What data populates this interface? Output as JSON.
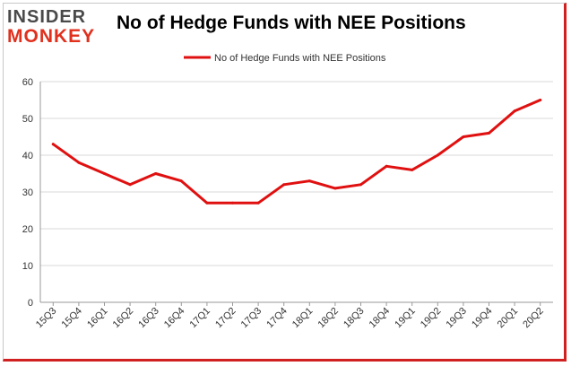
{
  "brand": {
    "logo_top": "INSIDER",
    "logo_bottom": "MONKEY"
  },
  "colors": {
    "series": "#e01010",
    "grid": "#d9d9d9",
    "axis": "#999999",
    "logo_red": "#e0301e",
    "logo_gray": "#4a4a4a"
  },
  "chart_data": {
    "type": "line",
    "title": "No of Hedge Funds with NEE Positions",
    "xlabel": "",
    "ylabel": "",
    "categories": [
      "15Q3",
      "15Q4",
      "16Q1",
      "16Q2",
      "16Q3",
      "16Q4",
      "17Q1",
      "17Q2",
      "17Q3",
      "17Q4",
      "18Q1",
      "18Q2",
      "18Q3",
      "18Q4",
      "19Q1",
      "19Q2",
      "19Q3",
      "19Q4",
      "20Q1",
      "20Q2"
    ],
    "series": [
      {
        "name": "No of Hedge Funds with NEE Positions",
        "values": [
          43,
          38,
          35,
          32,
          35,
          33,
          27,
          27,
          27,
          32,
          33,
          31,
          32,
          37,
          36,
          40,
          45,
          46,
          52,
          55
        ]
      }
    ],
    "ylim": [
      0,
      60
    ],
    "yticks": [
      0,
      10,
      20,
      30,
      40,
      50,
      60
    ],
    "grid": true,
    "legend": "top-center"
  }
}
